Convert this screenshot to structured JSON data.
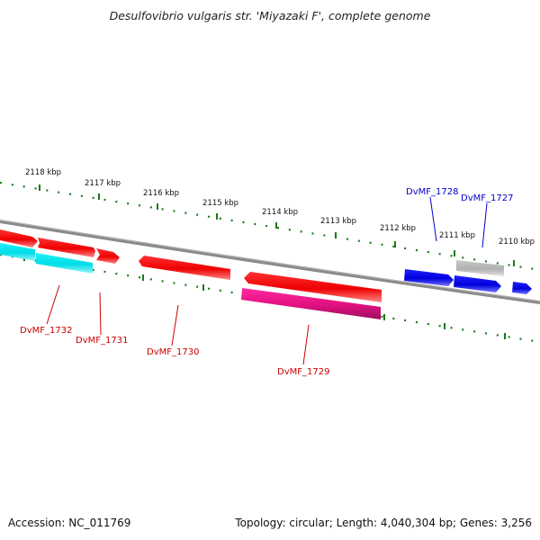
{
  "title": "Desulfovibrio vulgaris str. 'Miyazaki F', complete genome",
  "footer": {
    "accession": "Accession: NC_011769",
    "summary": "Topology: circular; Length: 4,040,304 bp; Genes: 3,256"
  },
  "scale_ticks": [
    "2118 kbp",
    "2117 kbp",
    "2116 kbp",
    "2115 kbp",
    "2114 kbp",
    "2113 kbp",
    "2112 kbp",
    "2111 kbp",
    "2110 kbp"
  ],
  "genes": [
    {
      "label": "DvMF_1732",
      "color": "#cc0000"
    },
    {
      "label": "DvMF_1731",
      "color": "#cc0000"
    },
    {
      "label": "DvMF_1730",
      "color": "#cc0000"
    },
    {
      "label": "DvMF_1729",
      "color": "#cc0000"
    },
    {
      "label": "DvMF_1728",
      "color": "#0000cc"
    },
    {
      "label": "DvMF_1727",
      "color": "#0000cc"
    }
  ],
  "colors": {
    "backbone": "#808080",
    "tick": "#1a7a1a",
    "cds_forward": "#ff0000",
    "cds_reverse_blue": "#0000ff",
    "rna_cyan": "#00e5ee",
    "pink": "#ff1493",
    "gray": "#bbbbbb"
  }
}
